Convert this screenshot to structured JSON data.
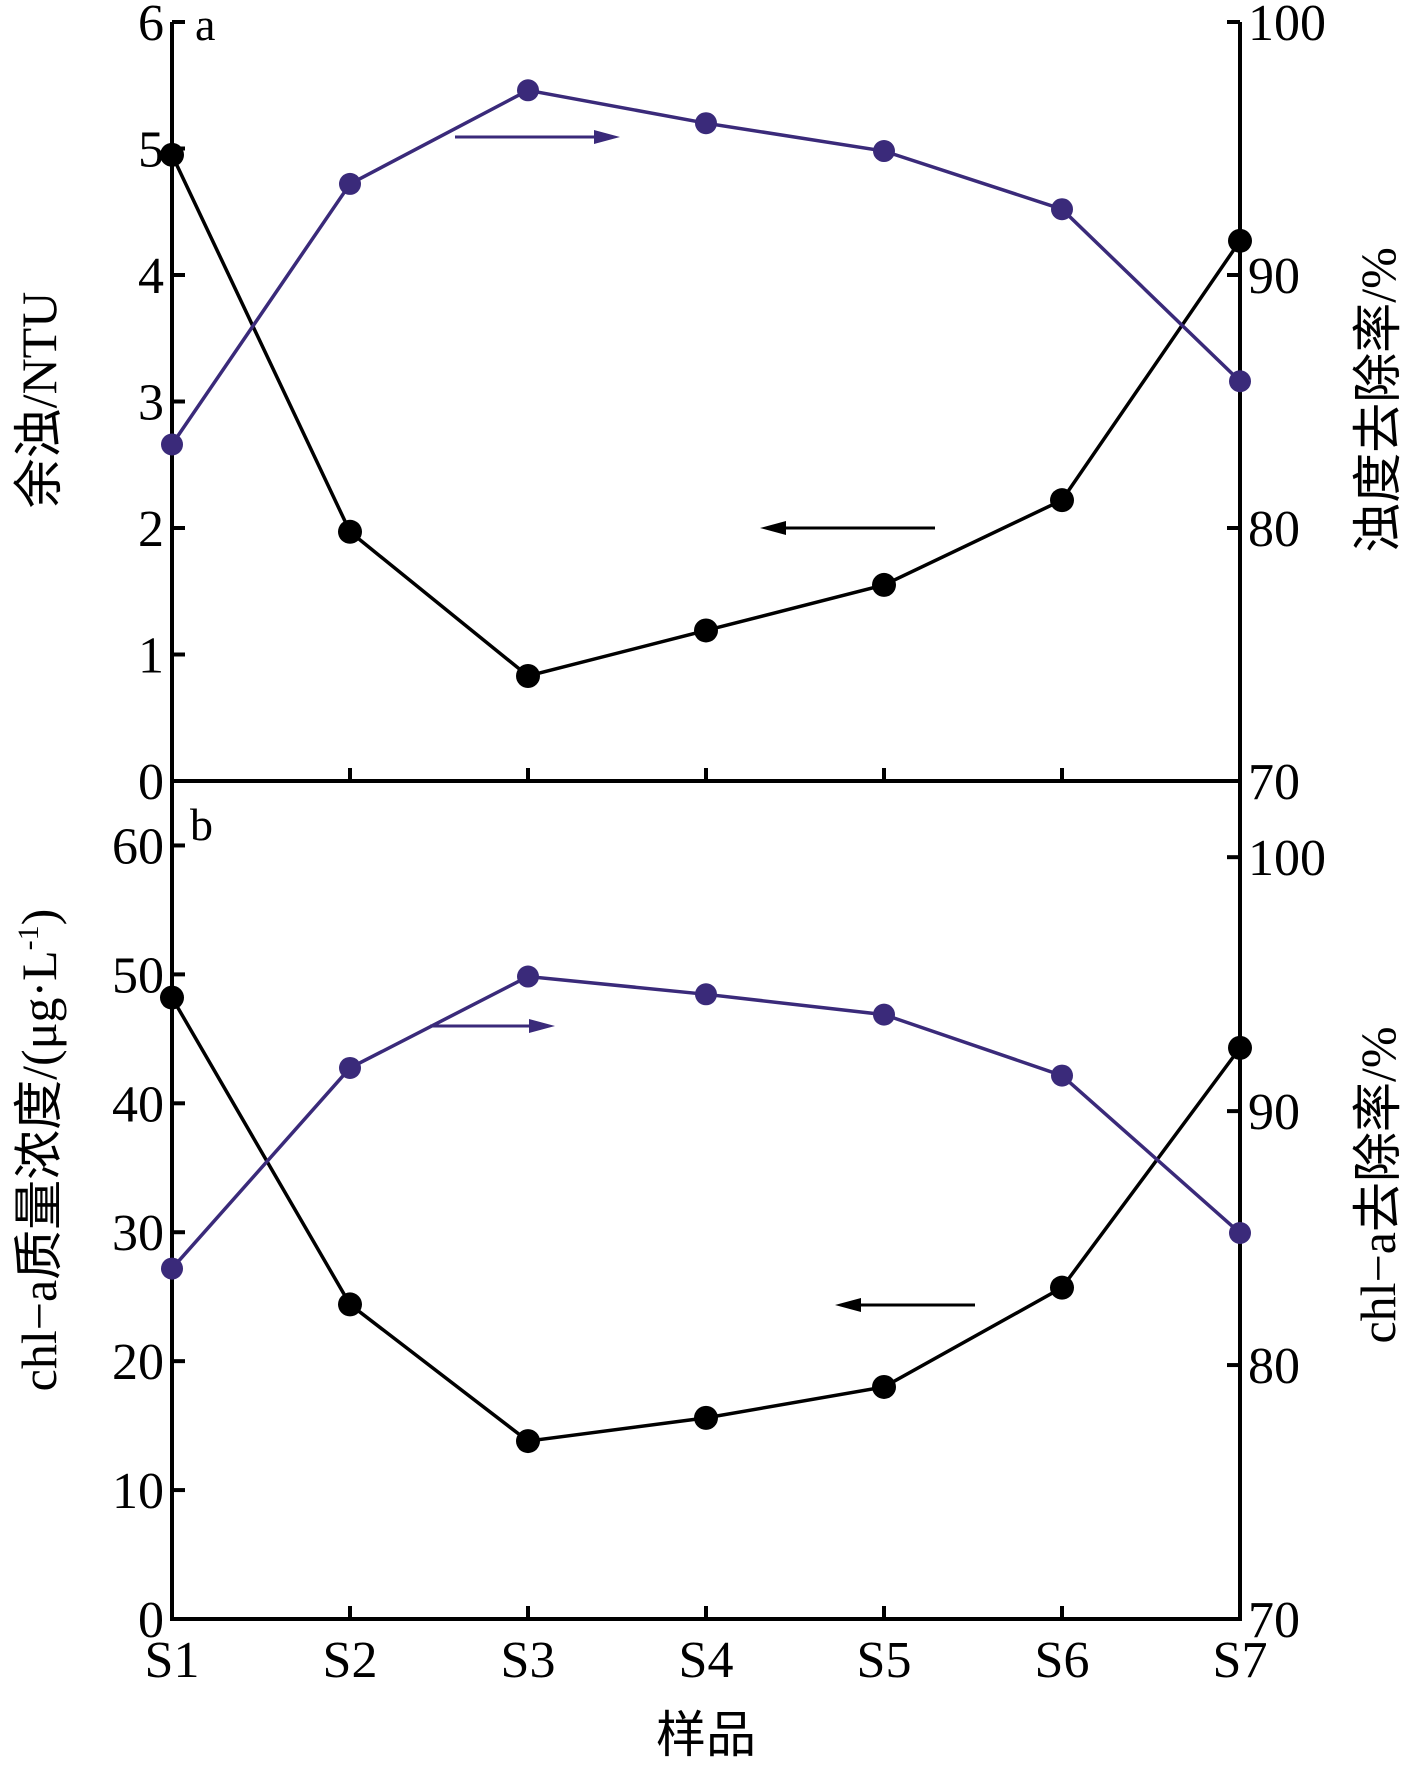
{
  "chart_data": [
    {
      "id": "a",
      "type": "line",
      "panel_label": "a",
      "categories": [
        "S1",
        "S2",
        "S3",
        "S4",
        "S5",
        "S6",
        "S7"
      ],
      "ylabel_left": "余浊/NTU",
      "ylabel_right": "浊度去除率/%",
      "ylim_left": [
        0,
        6
      ],
      "ylim_right": [
        70,
        100
      ],
      "yticks_left": [
        0,
        1,
        2,
        3,
        4,
        5,
        6
      ],
      "yticks_right": [
        70,
        80,
        90,
        100
      ],
      "series": [
        {
          "name": "余浊",
          "axis": "left",
          "color": "#000000",
          "values": [
            4.95,
            1.97,
            0.83,
            1.19,
            1.55,
            2.22,
            4.27
          ]
        },
        {
          "name": "浊度去除率",
          "axis": "right",
          "color": "#3a2a7a",
          "values": [
            83.3,
            93.6,
            97.3,
            96.0,
            94.9,
            92.6,
            85.8
          ]
        }
      ],
      "arrows": [
        {
          "series": "浊度去除率",
          "direction": "right"
        },
        {
          "series": "余浊",
          "direction": "left"
        }
      ]
    },
    {
      "id": "b",
      "type": "line",
      "panel_label": "b",
      "categories": [
        "S1",
        "S2",
        "S3",
        "S4",
        "S5",
        "S6",
        "S7"
      ],
      "xlabel": "样品",
      "ylabel_left": "chl−a质量浓度/(μg·L",
      "ylabel_left_sup": "-1",
      "ylabel_left_end": ")",
      "ylabel_right": "chl−a去除率/%",
      "ylim_left": [
        0,
        65
      ],
      "ylim_right": [
        70,
        103
      ],
      "yticks_left": [
        0,
        10,
        20,
        30,
        40,
        50,
        60
      ],
      "yticks_right": [
        70,
        80,
        90,
        100
      ],
      "series": [
        {
          "name": "chl-a质量浓度",
          "axis": "left",
          "color": "#000000",
          "values": [
            48.2,
            24.4,
            13.8,
            15.6,
            18.0,
            25.7,
            44.3
          ]
        },
        {
          "name": "chl-a去除率",
          "axis": "right",
          "color": "#3a2a7a",
          "values": [
            83.8,
            91.7,
            95.3,
            94.6,
            93.8,
            91.4,
            85.2
          ]
        }
      ],
      "arrows": [
        {
          "series": "chl-a去除率",
          "direction": "right"
        },
        {
          "series": "chl-a质量浓度",
          "direction": "left"
        }
      ]
    }
  ]
}
